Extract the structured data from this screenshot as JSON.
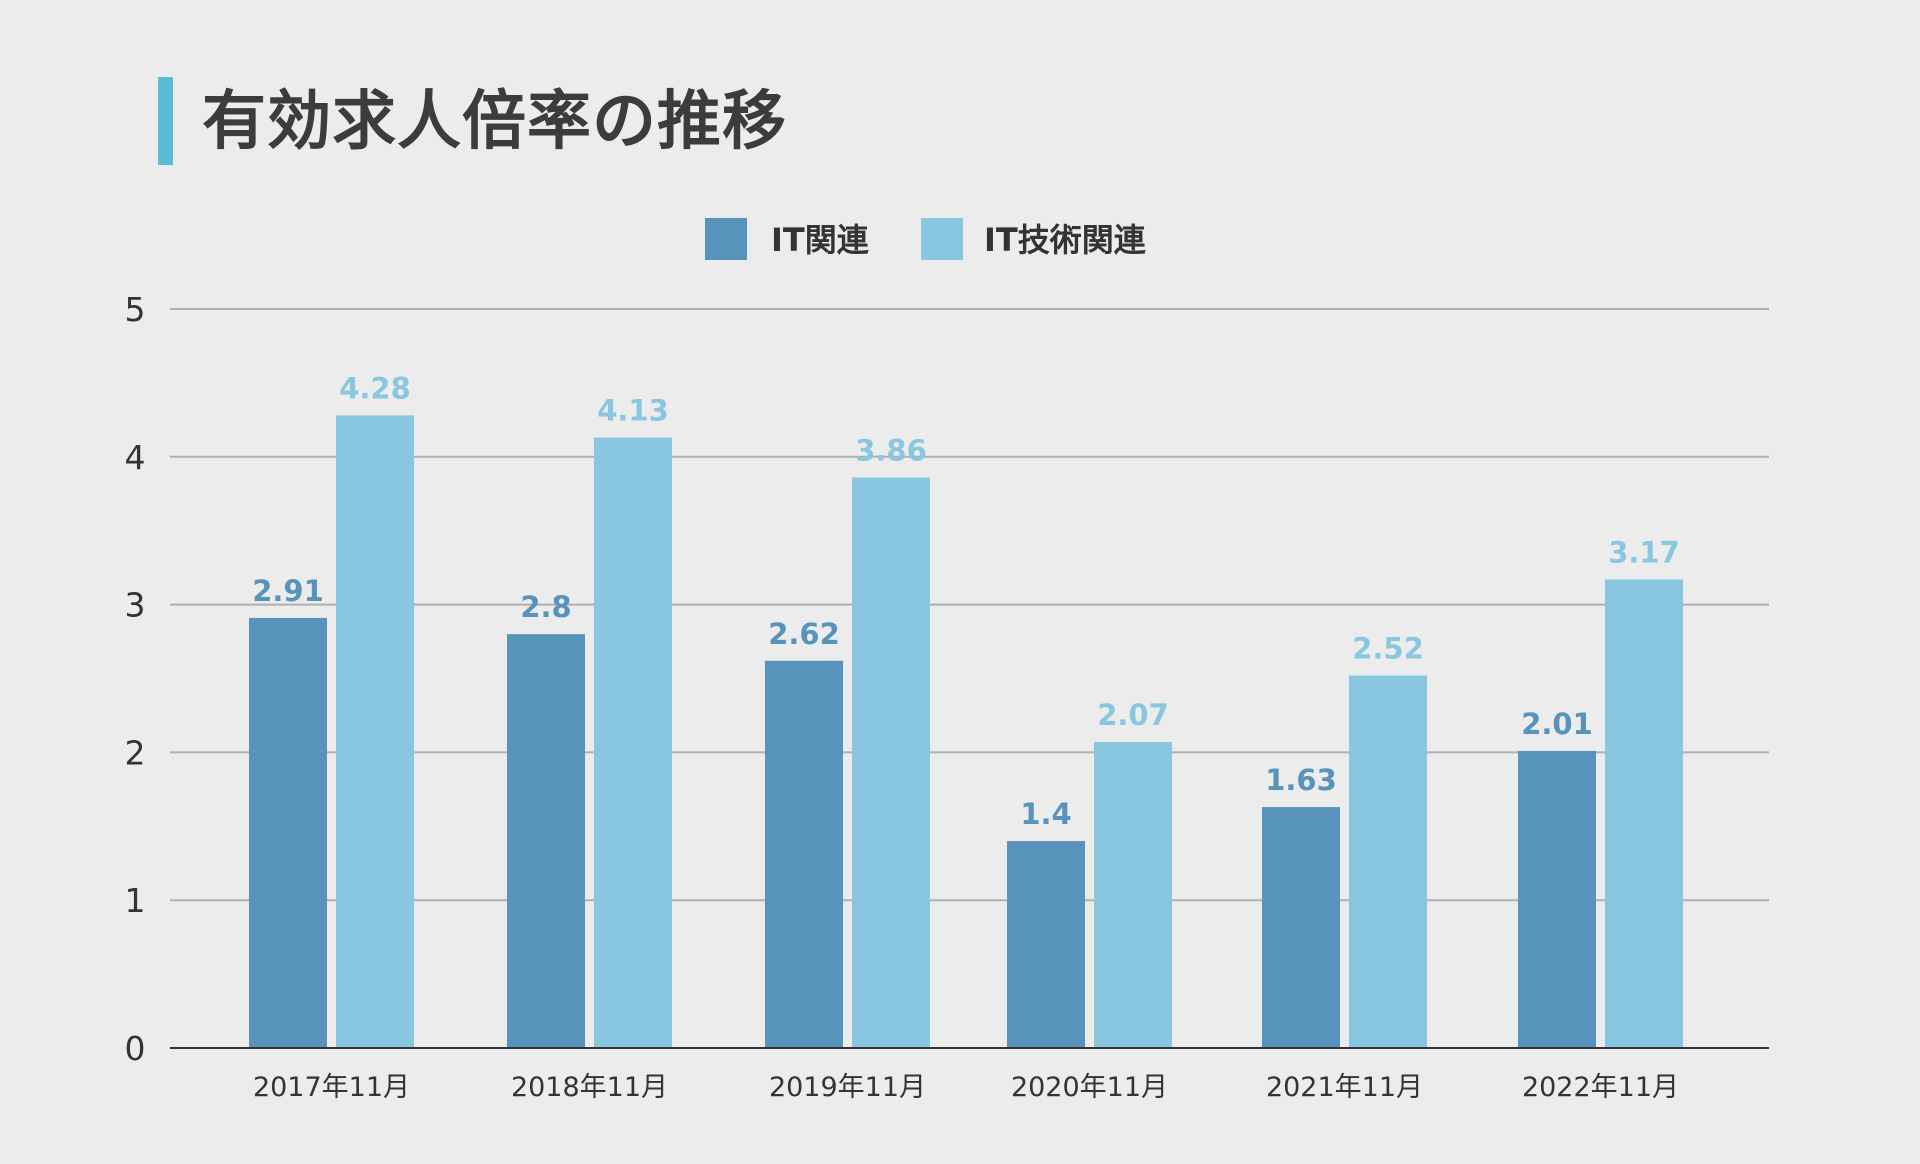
{
  "title": "有効求人倍率の推移",
  "colors": {
    "series1": "#5793bb",
    "series2": "#89c6e0",
    "accent": "#5bbcd8",
    "grid": "#b0b0b0"
  },
  "chart_data": {
    "type": "bar",
    "title": "有効求人倍率の推移",
    "categories": [
      "2017年11月",
      "2018年11月",
      "2019年11月",
      "2020年11月",
      "2021年11月",
      "2022年11月"
    ],
    "series": [
      {
        "name": "IT関連",
        "values": [
          2.91,
          2.8,
          2.62,
          1.4,
          1.63,
          2.01
        ],
        "labels": [
          "2.91",
          "2.8",
          "2.62",
          "1.4",
          "1.63",
          "2.01"
        ]
      },
      {
        "name": "IT技術関連",
        "values": [
          4.28,
          4.13,
          3.86,
          2.07,
          2.52,
          3.17
        ],
        "labels": [
          "4.28",
          "4.13",
          "3.86",
          "2.07",
          "2.52",
          "3.17"
        ]
      }
    ],
    "yticks": [
      "0",
      "1",
      "2",
      "3",
      "4",
      "5"
    ],
    "ylim": [
      0,
      5
    ],
    "xlabel": "",
    "ylabel": "",
    "grid": true,
    "legend": "top-center"
  }
}
